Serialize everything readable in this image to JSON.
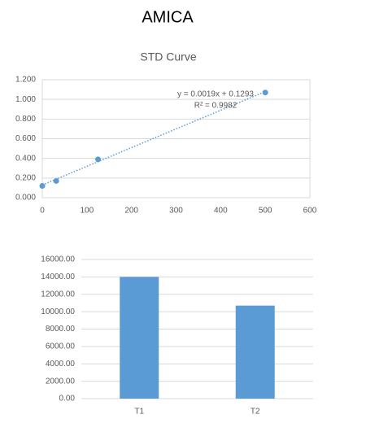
{
  "header": {
    "title": "AMICA"
  },
  "chart_data": [
    {
      "type": "scatter",
      "title": "STD Curve",
      "series": [
        {
          "x": [
            0,
            31.25,
            125,
            500
          ],
          "values": [
            0.12,
            0.17,
            0.39,
            1.07
          ],
          "color": "#5b9bd5",
          "style": "markers"
        },
        {
          "x": [
            0,
            500
          ],
          "values": [
            0.1293,
            1.0793
          ],
          "color": "#5b9bd5",
          "style": "dotted"
        }
      ],
      "annotations": [
        "y = 0.0019x + 0.1293",
        "R² = 0.9982"
      ],
      "xlim": [
        0,
        600
      ],
      "xticks": [
        0,
        100,
        200,
        300,
        400,
        500,
        600
      ],
      "ylim": [
        0,
        1.2
      ],
      "yticks": [
        {
          "value": 0,
          "label": "0.000"
        },
        {
          "value": 0.2,
          "label": "0.200"
        },
        {
          "value": 0.4,
          "label": "0.400"
        },
        {
          "value": 0.6,
          "label": "0.600"
        },
        {
          "value": 0.8,
          "label": "0.800"
        },
        {
          "value": 1,
          "label": "1.000"
        },
        {
          "value": 1.2,
          "label": "1.200"
        }
      ],
      "grid": true
    },
    {
      "type": "bar",
      "categories": [
        "T1",
        "T2"
      ],
      "values": [
        14000,
        10700
      ],
      "color": "#5b9bd5",
      "ylim": [
        0,
        16000
      ],
      "yticks": [
        {
          "value": 0,
          "label": "0.00"
        },
        {
          "value": 2000,
          "label": "2000.00"
        },
        {
          "value": 4000,
          "label": "4000.00"
        },
        {
          "value": 6000,
          "label": "6000.00"
        },
        {
          "value": 8000,
          "label": "8000.00"
        },
        {
          "value": 10000,
          "label": "10000.00"
        },
        {
          "value": 12000,
          "label": "12000.00"
        },
        {
          "value": 14000,
          "label": "14000.00"
        },
        {
          "value": 16000,
          "label": "16000.00"
        }
      ],
      "grid": true
    }
  ]
}
